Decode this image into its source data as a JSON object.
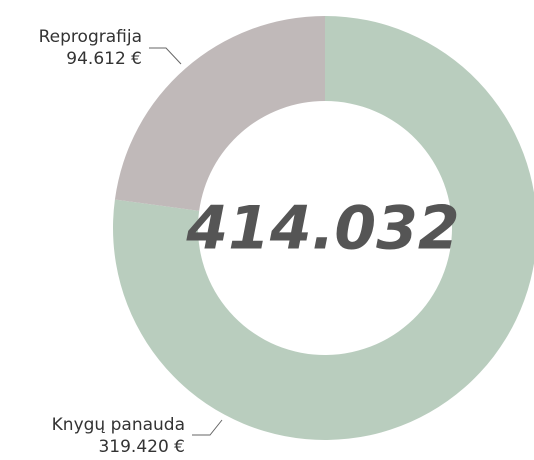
{
  "chart_data": {
    "type": "donut",
    "categories": [
      "Knygų panauda",
      "Reprografija"
    ],
    "values": [
      319420,
      94612
    ],
    "value_labels": [
      "319.420 €",
      "94.612 €"
    ],
    "colors": [
      "#b9cdbe",
      "#c0b9b9"
    ],
    "center_text": "414.032"
  }
}
